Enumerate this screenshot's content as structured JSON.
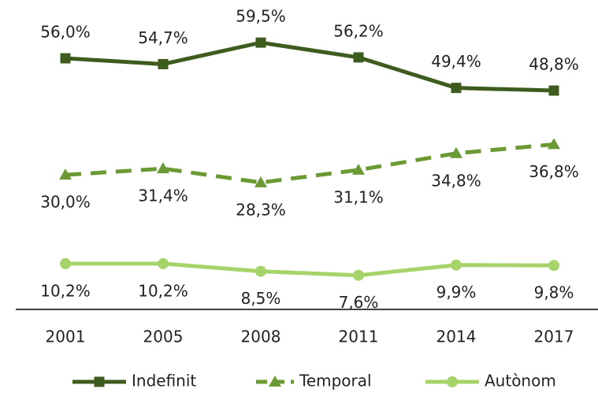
{
  "chart_data": {
    "type": "line",
    "categories": [
      "2001",
      "2005",
      "2008",
      "2011",
      "2014",
      "2017"
    ],
    "ylim": [
      0,
      69
    ],
    "legend": "bottom",
    "series": [
      {
        "name": "Indefinit",
        "color": "#3d5c1e",
        "marker": "square",
        "dashed": false,
        "label_position": "above",
        "values": [
          56.0,
          54.7,
          59.5,
          56.2,
          49.4,
          48.8
        ],
        "value_labels": [
          "56,0%",
          "54,7%",
          "59,5%",
          "56,2%",
          "49,4%",
          "48,8%"
        ]
      },
      {
        "name": "Temporal",
        "color": "#6b9a34",
        "marker": "triangle",
        "dashed": true,
        "label_position": "below",
        "values": [
          30.0,
          31.4,
          28.3,
          31.1,
          34.8,
          36.8
        ],
        "value_labels": [
          "30,0%",
          "31,4%",
          "28,3%",
          "31,1%",
          "34,8%",
          "36,8%"
        ]
      },
      {
        "name": "Autònom",
        "color": "#a6d36a",
        "marker": "circle",
        "dashed": false,
        "label_position": "below",
        "values": [
          10.2,
          10.2,
          8.5,
          7.6,
          9.9,
          9.8
        ],
        "value_labels": [
          "10,2%",
          "10,2%",
          "8,5%",
          "7,6%",
          "9,9%",
          "9,8%"
        ]
      }
    ]
  }
}
